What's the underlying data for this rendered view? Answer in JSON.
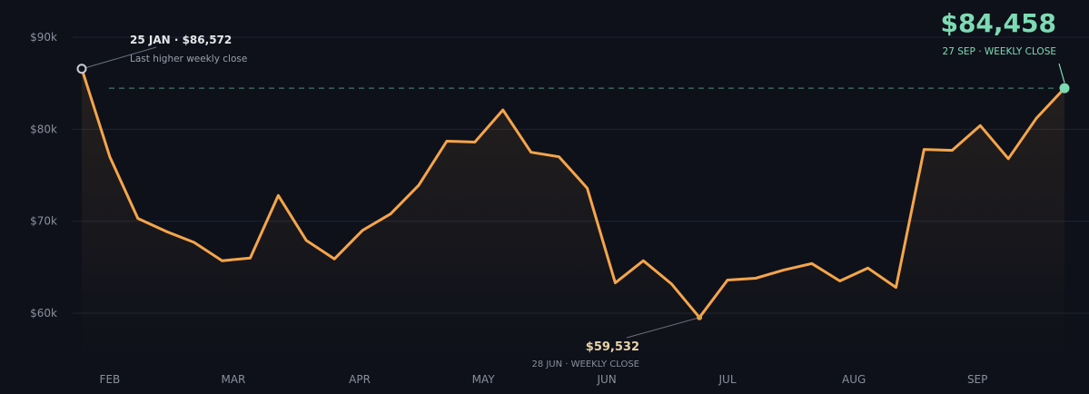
{
  "chart_data": {
    "type": "line",
    "x": [
      "25 JAN",
      "1 FEB",
      "8 FEB",
      "15 FEB",
      "22 FEB",
      "1 MAR",
      "8 MAR",
      "15 MAR",
      "22 MAR",
      "29 MAR",
      "5 APR",
      "12 APR",
      "19 APR",
      "26 APR",
      "3 MAY",
      "10 MAY",
      "17 MAY",
      "24 MAY",
      "31 MAY",
      "7 JUN",
      "14 JUN",
      "21 JUN",
      "28 JUN",
      "5 JUL",
      "12 JUL",
      "19 JUL",
      "26 JUL",
      "2 AUG",
      "9 AUG",
      "16 AUG",
      "23 AUG",
      "30 AUG",
      "6 SEP",
      "13 SEP",
      "20 SEP",
      "27 SEP"
    ],
    "series": [
      {
        "values": [
          86572,
          77000,
          70300,
          68900,
          67700,
          65700,
          66000,
          72800,
          67900,
          65900,
          69000,
          70800,
          73900,
          78700,
          78600,
          82100,
          77500,
          77000,
          73600,
          63300,
          65700,
          63200,
          59532,
          63600,
          63800,
          64700,
          65400,
          63500,
          64900,
          62800,
          77800,
          77700,
          80400,
          76800,
          81200,
          84458
        ],
        "color": "#f5a54a"
      }
    ],
    "ylim": [
      55000,
      92000
    ],
    "y_ticks": [
      {
        "value": 60000,
        "label": "$60k"
      },
      {
        "value": 70000,
        "label": "$70k"
      },
      {
        "value": 80000,
        "label": "$80k"
      },
      {
        "value": 90000,
        "label": "$90k"
      }
    ],
    "x_ticks": [
      {
        "at": 1,
        "label": "FEB"
      },
      {
        "at": 5.4,
        "label": "MAR"
      },
      {
        "at": 9.9,
        "label": "APR"
      },
      {
        "at": 14.3,
        "label": "MAY"
      },
      {
        "at": 18.7,
        "label": "JUN"
      },
      {
        "at": 23,
        "label": "JUL"
      },
      {
        "at": 27.5,
        "label": "AUG"
      },
      {
        "at": 31.9,
        "label": "SEP"
      }
    ],
    "grid": true,
    "reference_line": {
      "value": 84458,
      "style": "dashed"
    },
    "annotations": {
      "start": {
        "index": 0,
        "title": "25 JAN · $86,572",
        "subtitle": "Last higher weekly close"
      },
      "low": {
        "index": 22,
        "value_label": "$59,532",
        "subtitle": "28 JUN · WEEKLY CLOSE"
      },
      "last": {
        "index": 35,
        "value_label": "$84,458",
        "subtitle": "27 SEP · WEEKLY CLOSE"
      }
    }
  },
  "colors": {
    "background": "#0e111a",
    "line": "#f5a54a",
    "grid": "#1f2433",
    "accent": "#7ddbb4",
    "low_marker": "#e0a44a",
    "start_marker": "#c9ccd3"
  }
}
